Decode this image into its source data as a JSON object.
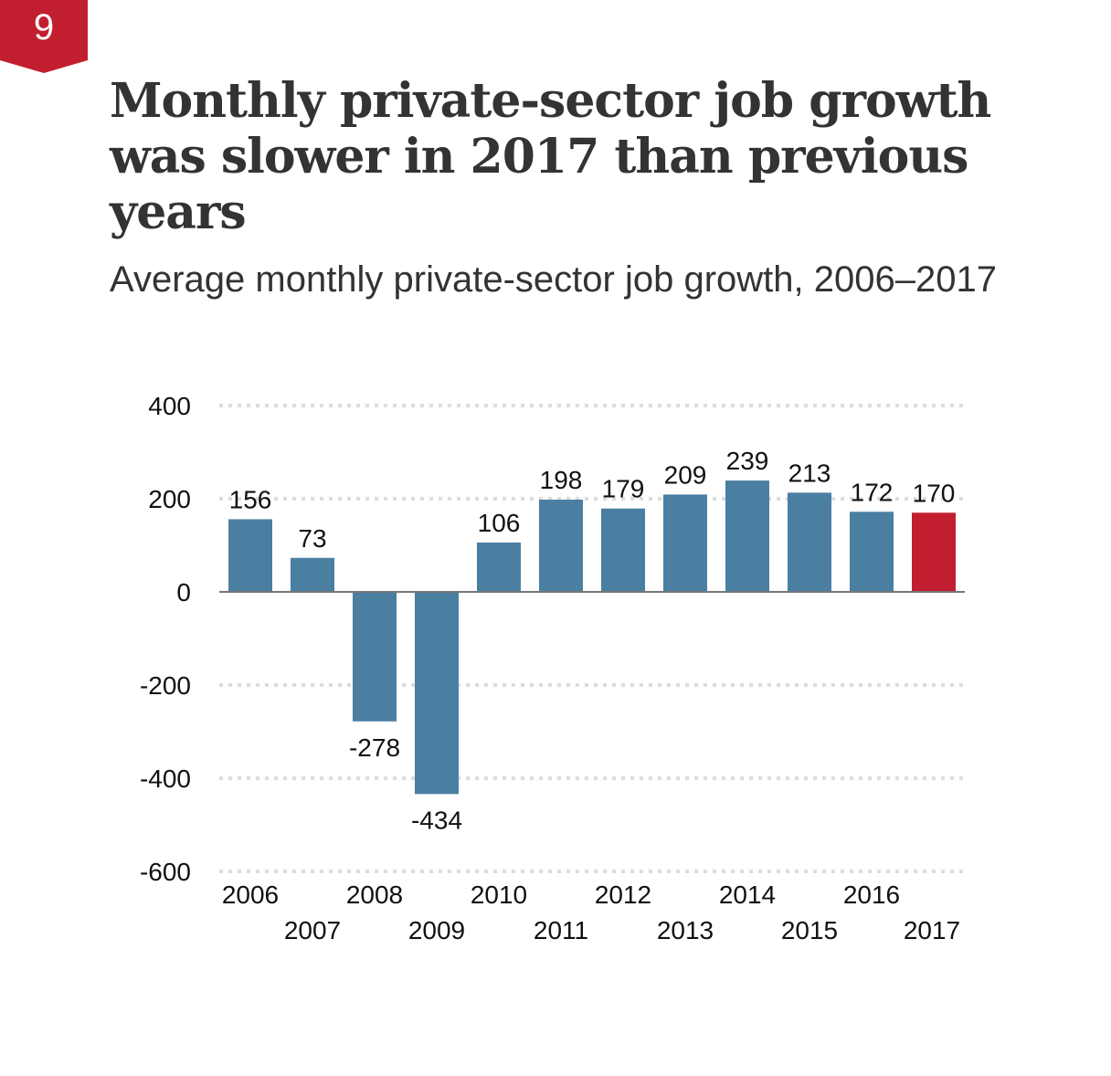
{
  "badge": {
    "number": "9"
  },
  "header": {
    "title": "Monthly private-sector job growth was slower in 2017 than previous years",
    "subtitle": "Average monthly private-sector job growth, 2006–2017"
  },
  "colors": {
    "badge": "#c11f2f",
    "bar_default": "#4a7fa2",
    "bar_highlight": "#c11f2f",
    "gridline": "#dddddd",
    "zero_line": "#777777",
    "text": "#333333"
  },
  "chart_data": {
    "type": "bar",
    "title": "Monthly private-sector job growth was slower in 2017 than previous years",
    "subtitle": "Average monthly private-sector job growth, 2006–2017",
    "xlabel": "",
    "ylabel": "",
    "categories": [
      "2006",
      "2007",
      "2008",
      "2009",
      "2010",
      "2011",
      "2012",
      "2013",
      "2014",
      "2015",
      "2016",
      "2017"
    ],
    "values": [
      156,
      73,
      -278,
      -434,
      106,
      198,
      179,
      209,
      239,
      213,
      172,
      170
    ],
    "highlight_category": "2017",
    "ylim": [
      -600,
      400
    ],
    "yticks": [
      400,
      200,
      0,
      -200,
      -400,
      -600
    ],
    "ytick_labels": [
      "400",
      "200",
      "0",
      "-200",
      "-400",
      "-600"
    ],
    "grid": "horizontal dotted",
    "legend": "none",
    "data_labels": [
      "156",
      "73",
      "-278",
      "-434",
      "106",
      "198",
      "179",
      "209",
      "239",
      "213",
      "172",
      "170"
    ]
  }
}
